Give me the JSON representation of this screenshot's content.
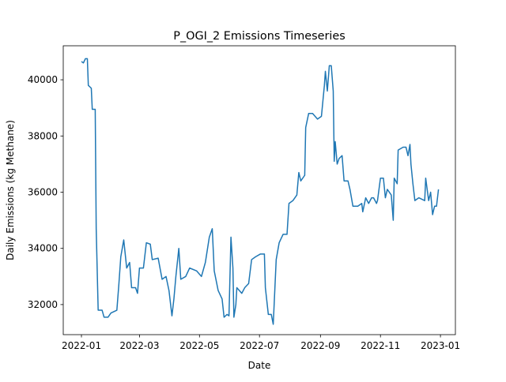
{
  "chart_data": {
    "type": "line",
    "title": "P_OGI_2 Emissions Timeseries",
    "xlabel": "Date",
    "ylabel": "Daily Emissions (kg Methane)",
    "color": "#1f77b4",
    "x": [
      0,
      2,
      4,
      6,
      7,
      10,
      11,
      14,
      15,
      17,
      21,
      23,
      27,
      30,
      36,
      38,
      40,
      43,
      46,
      49,
      51,
      55,
      57,
      59,
      63,
      66,
      70,
      72,
      78,
      82,
      86,
      89,
      92,
      94,
      96,
      99,
      101,
      106,
      110,
      117,
      122,
      126,
      130,
      133,
      135,
      139,
      143,
      145,
      148,
      150,
      152,
      154,
      155,
      157,
      158,
      163,
      166,
      170,
      173,
      177,
      182,
      186,
      187,
      190,
      193,
      195,
      198,
      201,
      205,
      209,
      211,
      215,
      219,
      221,
      223,
      227,
      228,
      231,
      235,
      240,
      244,
      247,
      248,
      250,
      252,
      254,
      256,
      257,
      258,
      260,
      262,
      265,
      267,
      271,
      273,
      276,
      281,
      285,
      286,
      289,
      292,
      295,
      297,
      300,
      301,
      304,
      307,
      309,
      311,
      315,
      317,
      318,
      321,
      322,
      327,
      330,
      332,
      334,
      335,
      337,
      339,
      343,
      349,
      350,
      353,
      355,
      357,
      359,
      361,
      363
    ],
    "values": [
      40650,
      40600,
      40750,
      40750,
      39800,
      39700,
      38950,
      38950,
      34700,
      31800,
      31800,
      31550,
      31550,
      31700,
      31800,
      32700,
      33700,
      34300,
      33300,
      33500,
      32600,
      32600,
      32400,
      33300,
      33300,
      34200,
      34150,
      33600,
      33650,
      32900,
      33000,
      32500,
      31600,
      32200,
      33000,
      34000,
      32900,
      33000,
      33300,
      33200,
      33000,
      33500,
      34400,
      34700,
      33200,
      32500,
      32200,
      31550,
      31650,
      31600,
      34400,
      33300,
      31550,
      32000,
      32600,
      32400,
      32600,
      32750,
      33600,
      33700,
      33800,
      33800,
      32600,
      31650,
      31650,
      31300,
      33600,
      34200,
      34500,
      34500,
      35600,
      35700,
      35900,
      36700,
      36400,
      36600,
      38300,
      38800,
      38800,
      38600,
      38700,
      39800,
      40300,
      39600,
      40500,
      40500,
      39600,
      37100,
      37800,
      37000,
      37200,
      37300,
      36400,
      36400,
      36100,
      35500,
      35500,
      35600,
      35300,
      35800,
      35600,
      35800,
      35800,
      35600,
      35700,
      36500,
      36500,
      35800,
      36100,
      35900,
      35000,
      36500,
      36300,
      37500,
      37600,
      37600,
      37300,
      37700,
      37000,
      36300,
      35700,
      35800,
      35700,
      36500,
      35700,
      36000,
      35200,
      35500,
      35500,
      36100
    ],
    "xlim": [
      -18.5,
      380.2
    ],
    "ylim": [
      30930,
      41210
    ],
    "xticks": [
      {
        "value": 0,
        "label": "2022-01"
      },
      {
        "value": 59,
        "label": "2022-03"
      },
      {
        "value": 120,
        "label": "2022-05"
      },
      {
        "value": 181,
        "label": "2022-07"
      },
      {
        "value": 243,
        "label": "2022-09"
      },
      {
        "value": 304,
        "label": "2022-11"
      },
      {
        "value": 365,
        "label": "2023-01"
      }
    ],
    "yticks": [
      32000,
      34000,
      36000,
      38000,
      40000
    ]
  }
}
